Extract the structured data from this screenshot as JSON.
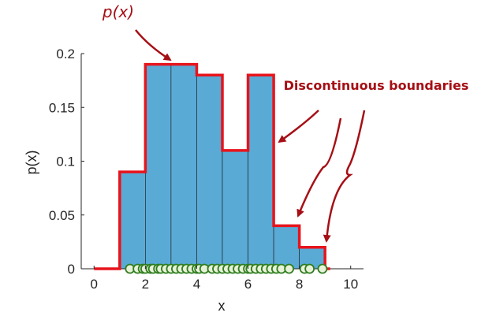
{
  "chart_data": {
    "type": "histogram",
    "title": "",
    "xlabel": "x",
    "ylabel": "p(x)",
    "xlim": [
      -0.5,
      10.5
    ],
    "ylim": [
      0,
      0.2
    ],
    "xticks": [
      "0",
      "2",
      "4",
      "6",
      "8",
      "10"
    ],
    "yticks": [
      "0",
      "0.05",
      "0.1",
      "0.15",
      "0.2"
    ],
    "bin_edges": [
      1,
      2,
      3,
      4,
      5,
      6,
      7,
      8,
      9
    ],
    "values": [
      0.09,
      0.19,
      0.19,
      0.18,
      0.11,
      0.18,
      0.04,
      0.02
    ],
    "density_line_x_range": [
      0,
      9.2
    ],
    "samples": [
      1.4,
      1.7,
      1.9,
      2.0,
      2.2,
      2.3,
      2.5,
      2.6,
      2.8,
      3.0,
      3.2,
      3.4,
      3.6,
      3.8,
      4.0,
      4.1,
      4.3,
      4.6,
      4.8,
      5.0,
      5.2,
      5.4,
      5.6,
      5.8,
      6.0,
      6.1,
      6.3,
      6.5,
      6.7,
      6.9,
      7.1,
      7.3,
      7.6,
      8.2,
      8.4,
      8.9
    ],
    "annotations": {
      "curve_label": "p(x)",
      "boundaries_label": "Discontinuous boundaries"
    },
    "colors": {
      "bar_fill": "#5aaad6",
      "bar_edge": "#1a1a1a",
      "density_line": "#e8141c",
      "annotation": "#a50f15",
      "sample_fill": "#e8f2d8",
      "sample_edge": "#2e7d1f"
    }
  }
}
